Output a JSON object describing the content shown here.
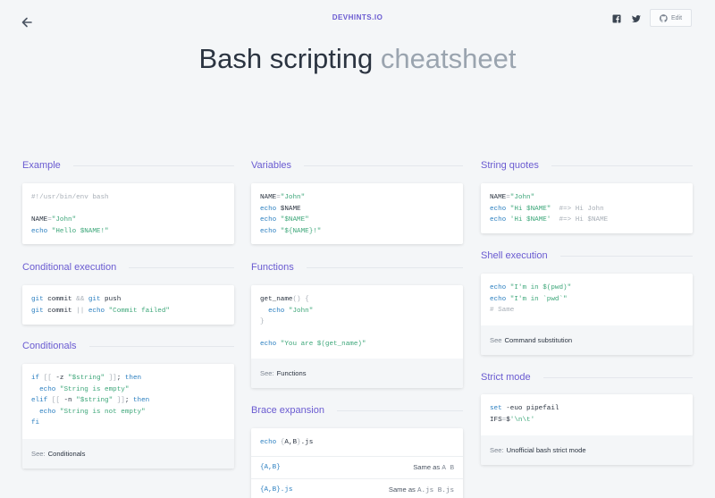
{
  "header": {
    "brand": "DEVHINTS.IO",
    "edit_label": "Edit"
  },
  "title": {
    "main": "Bash scripting",
    "sub": "cheatsheet"
  },
  "sections": {
    "example": {
      "title": "Example",
      "lines": [
        "#!/usr/bin/env bash",
        "",
        "NAME=\"John\"",
        "echo \"Hello $NAME!\""
      ]
    },
    "variables": {
      "title": "Variables",
      "lines": [
        "NAME=\"John\"",
        "echo $NAME",
        "echo \"$NAME\"",
        "echo \"${NAME}!\""
      ]
    },
    "string_quotes": {
      "title": "String quotes",
      "lines": [
        "NAME=\"John\"",
        "echo \"Hi $NAME\"  #=> Hi John",
        "echo 'Hi $NAME'  #=> Hi $NAME"
      ]
    },
    "conditional_execution": {
      "title": "Conditional execution",
      "lines": [
        "git commit && git push",
        "git commit || echo \"Commit failed\""
      ]
    },
    "functions": {
      "title": "Functions",
      "lines": [
        "get_name() {",
        "  echo \"John\"",
        "}",
        "",
        "echo \"You are $(get_name)\""
      ],
      "see_label": "See:",
      "see_link": "Functions"
    },
    "shell_execution": {
      "title": "Shell execution",
      "lines": [
        "echo \"I'm in $(pwd)\"",
        "echo \"I'm in `pwd`\"",
        "# Same"
      ],
      "see_label": "See",
      "see_link": "Command substitution"
    },
    "conditionals": {
      "title": "Conditionals",
      "lines": [
        "if [[ -z \"$string\" ]]; then",
        "  echo \"String is empty\"",
        "elif [[ -n \"$string\" ]]; then",
        "  echo \"String is not empty\"",
        "fi"
      ],
      "see_label": "See:",
      "see_link": "Conditionals"
    },
    "brace_expansion": {
      "title": "Brace expansion",
      "code": "echo {A,B}.js",
      "rows": [
        {
          "expr": "{A,B}",
          "same_as_label": "Same as",
          "same_as": "A B"
        },
        {
          "expr": "{A,B}.js",
          "same_as_label": "Same as",
          "same_as": "A.js B.js"
        }
      ]
    },
    "strict_mode": {
      "title": "Strict mode",
      "lines": [
        "set -euo pipefail",
        "IFS=$'\\n\\t'"
      ],
      "see_label": "See:",
      "see_link": "Unofficial bash strict mode"
    }
  },
  "colors": {
    "accent": "#6a5bd1",
    "keyword": "#2b7fc0",
    "string": "#3ea77a",
    "comment": "#a8afb7",
    "background": "#f4f6f8"
  }
}
